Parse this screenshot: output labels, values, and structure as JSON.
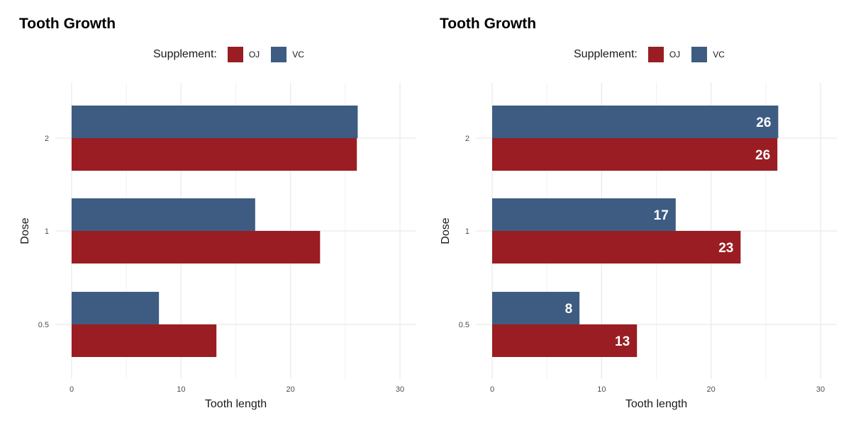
{
  "chart_data": [
    {
      "type": "bar",
      "orientation": "horizontal",
      "title": "Tooth Growth",
      "xlabel": "Tooth length",
      "ylabel": "Dose",
      "xlim": [
        0,
        31.5
      ],
      "x_ticks": [
        0,
        10,
        20,
        30
      ],
      "categories": [
        "0.5",
        "1",
        "2"
      ],
      "legend": {
        "title": "Supplement:",
        "position": "top"
      },
      "series": [
        {
          "name": "OJ",
          "color": "#991D22",
          "values": [
            13.23,
            22.7,
            26.06
          ]
        },
        {
          "name": "VC",
          "color": "#3E5C82",
          "values": [
            7.98,
            16.77,
            26.14
          ]
        }
      ],
      "show_value_labels": false,
      "grid": true
    },
    {
      "type": "bar",
      "orientation": "horizontal",
      "title": "Tooth Growth",
      "xlabel": "Tooth length",
      "ylabel": "Dose",
      "xlim": [
        0,
        31.5
      ],
      "x_ticks": [
        0,
        10,
        20,
        30
      ],
      "categories": [
        "0.5",
        "1",
        "2"
      ],
      "legend": {
        "title": "Supplement:",
        "position": "top"
      },
      "series": [
        {
          "name": "OJ",
          "color": "#991D22",
          "values": [
            13.23,
            22.7,
            26.06
          ],
          "labels": [
            "13",
            "23",
            "26"
          ]
        },
        {
          "name": "VC",
          "color": "#3E5C82",
          "values": [
            7.98,
            16.77,
            26.14
          ],
          "labels": [
            "8",
            "17",
            "26"
          ]
        }
      ],
      "show_value_labels": true,
      "grid": true
    }
  ]
}
